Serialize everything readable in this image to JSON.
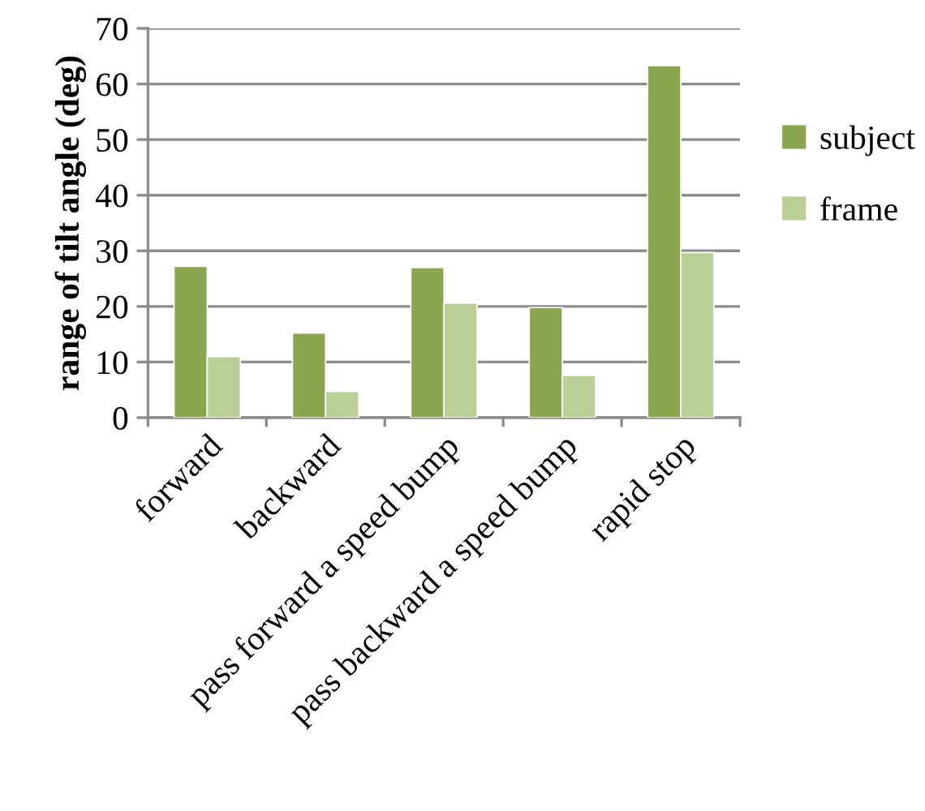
{
  "chart_data": {
    "type": "bar",
    "ylabel": "range of tilt angle (deg)",
    "categories": [
      "forward",
      "backward",
      "pass forward a speed bump",
      "pass backward a speed bump",
      "rapid stop"
    ],
    "series": [
      {
        "name": "subject",
        "color": "#8aa64e",
        "values": [
          27.2,
          15.2,
          27.0,
          19.8,
          63.3
        ]
      },
      {
        "name": "frame",
        "color": "#bacf96",
        "values": [
          11.0,
          4.7,
          20.6,
          7.6,
          29.7
        ]
      }
    ],
    "ylim": [
      0,
      70
    ],
    "yticks": [
      0,
      10,
      20,
      30,
      40,
      50,
      60,
      70
    ],
    "grid": "y",
    "legend": "right"
  }
}
